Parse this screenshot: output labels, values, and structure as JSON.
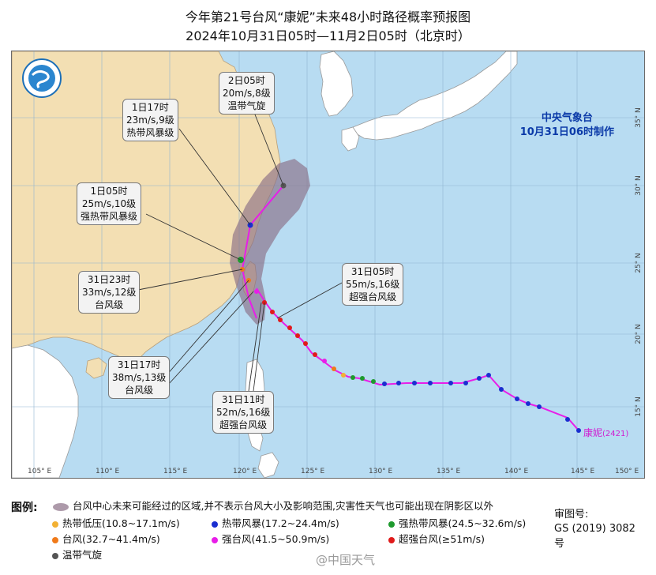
{
  "title": {
    "line1": "今年第21号台风“康妮”未来48小时路径概率预报图",
    "line2": "2024年10月31日05时—11月2日05时（北京时）"
  },
  "agency": {
    "name": "中央气象台",
    "made": "10月31日06时制作",
    "logo_icon": "cma-dragon-logo-icon"
  },
  "callouts": [
    {
      "id": "nov2-05",
      "lines": [
        "2日05时",
        "20m/s,8级",
        "温带气旋"
      ]
    },
    {
      "id": "nov1-17",
      "lines": [
        "1日17时",
        "23m/s,9级",
        "热带风暴级"
      ]
    },
    {
      "id": "nov1-05",
      "lines": [
        "1日05时",
        "25m/s,10级",
        "强热带风暴级"
      ]
    },
    {
      "id": "oct31-23",
      "lines": [
        "31日23时",
        "33m/s,12级",
        "台风级"
      ]
    },
    {
      "id": "oct31-17",
      "lines": [
        "31日17时",
        "38m/s,13级",
        "台风级"
      ]
    },
    {
      "id": "oct31-11",
      "lines": [
        "31日11时",
        "52m/s,16级",
        "超强台风级"
      ]
    },
    {
      "id": "oct31-05",
      "lines": [
        "31日05时",
        "55m/s,16级",
        "超强台风级"
      ]
    }
  ],
  "typhoon_label": {
    "name": "康妮",
    "code": "(2421)"
  },
  "lon_labels": [
    "105° E",
    "110° E",
    "115° E",
    "120° E",
    "125° E",
    "130° E",
    "135° E",
    "140° E",
    "145° E",
    "150° E"
  ],
  "lat_labels": [
    "35° N",
    "30° N",
    "25° N",
    "20° N",
    "15° N"
  ],
  "legend": {
    "heading": "图例:",
    "cone": "台风中心未来可能经过的区域,并不表示台风大小及影响范围,灾害性天气也可能出现在阴影区以外",
    "items": [
      {
        "label": "热带低压(10.8~17.1m/s)",
        "color": "#f2b134"
      },
      {
        "label": "热带风暴(17.2~24.4m/s)",
        "color": "#1a2fd0"
      },
      {
        "label": "强热带风暴(24.5~32.6m/s)",
        "color": "#1e9a2e"
      },
      {
        "label": "台风(32.7~41.4m/s)",
        "color": "#f07a1a"
      },
      {
        "label": "强台风(41.5~50.9m/s)",
        "color": "#e81ee8"
      },
      {
        "label": "超强台风(≥51m/s)",
        "color": "#e01a1a"
      },
      {
        "label": "温带气旋",
        "color": "#555555"
      }
    ],
    "cone_color": "#8a6f86",
    "review_label": "审图号:",
    "review_code": "GS (2019) 3082号"
  },
  "watermark": "@中国天气"
}
